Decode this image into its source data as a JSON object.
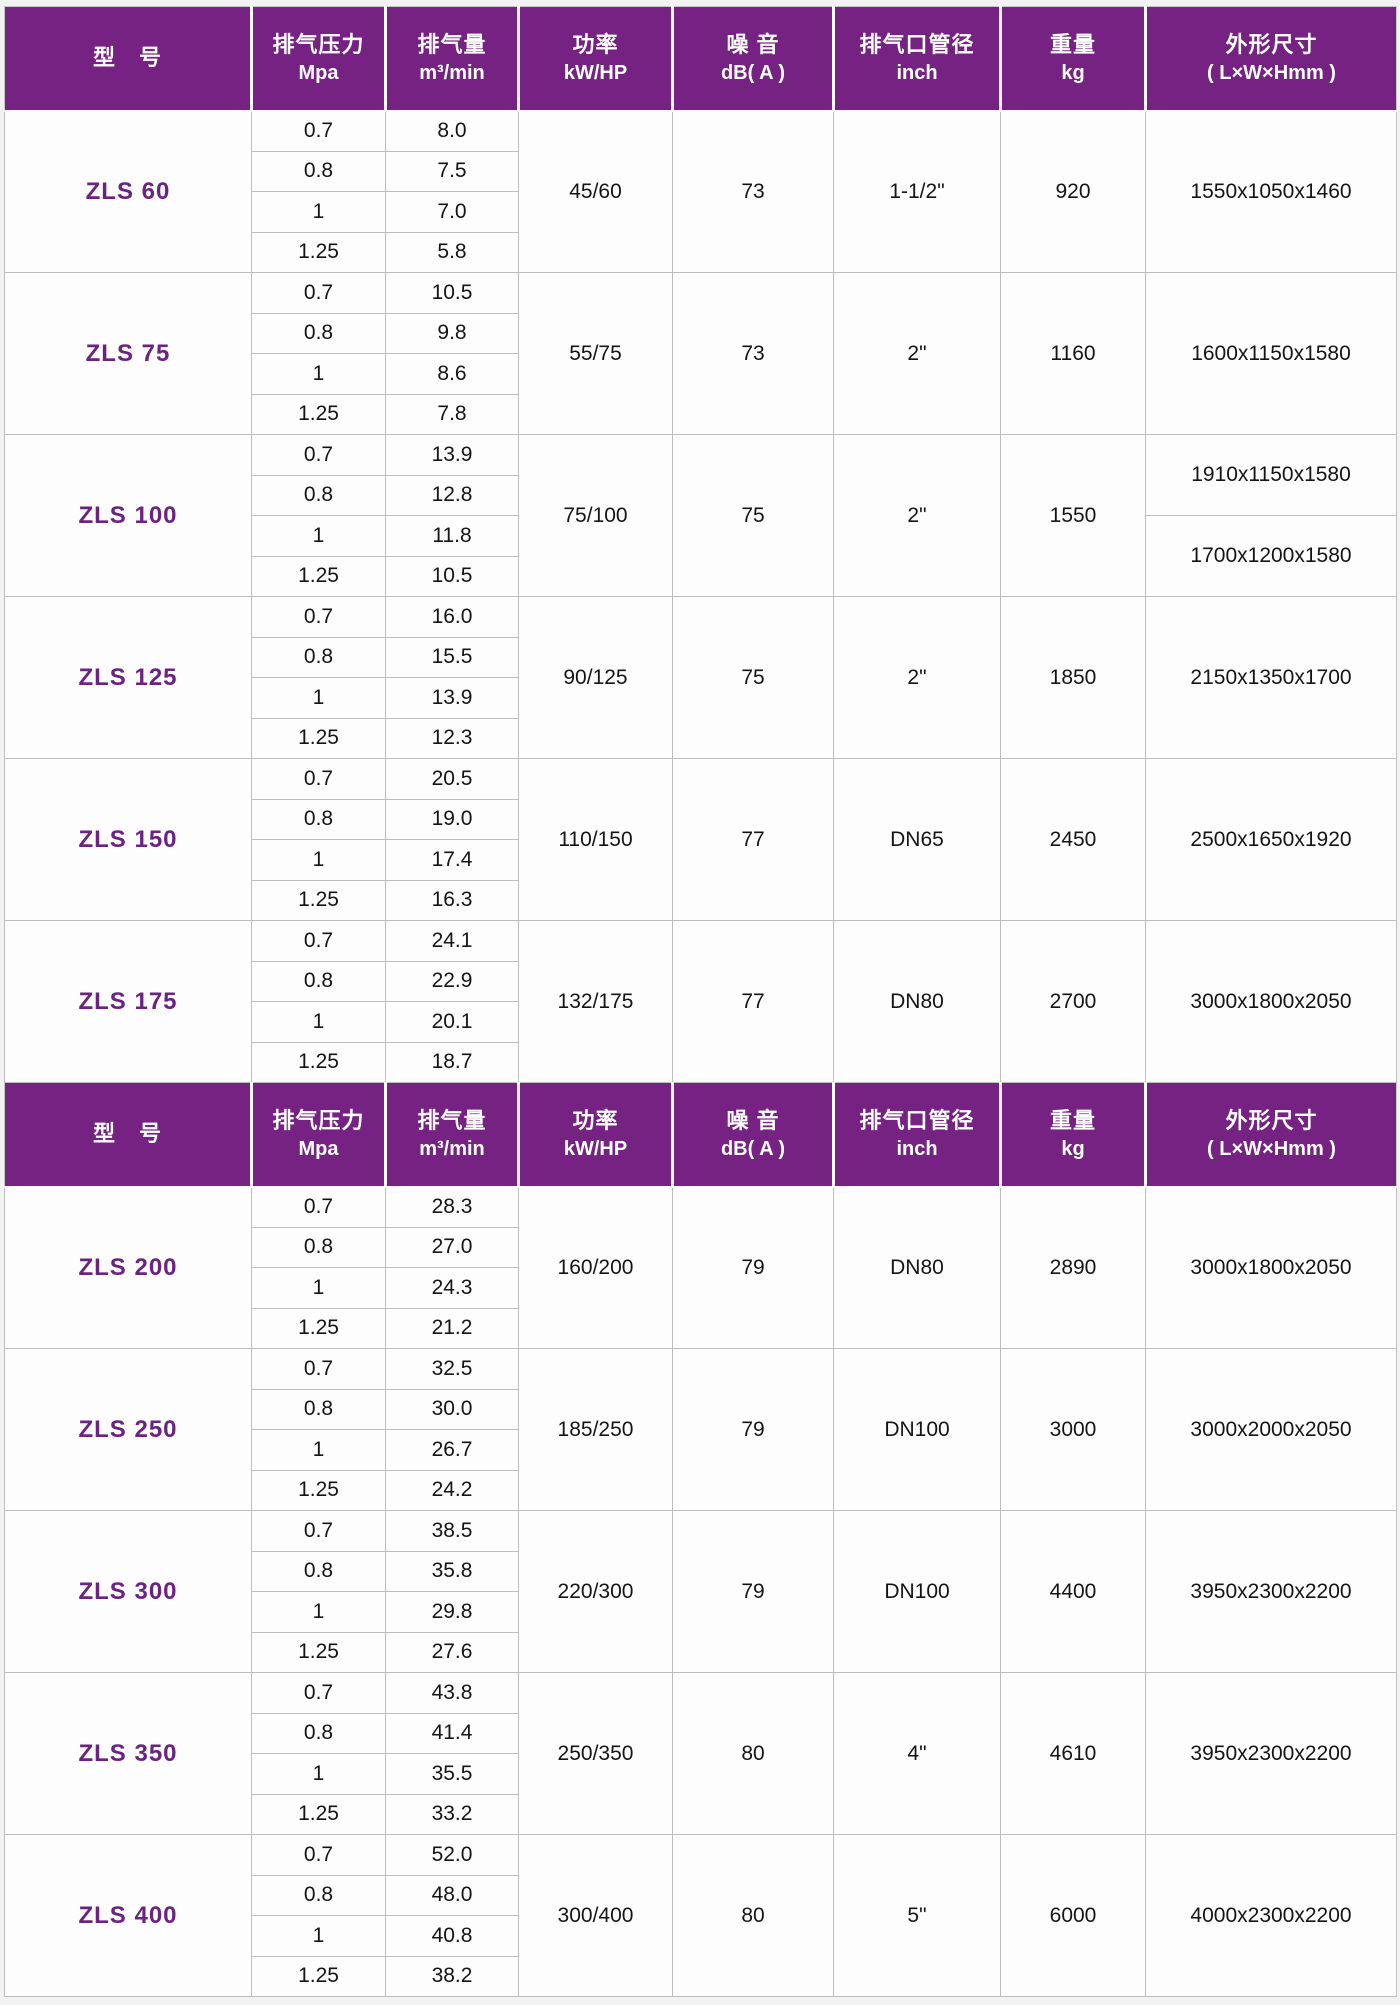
{
  "colors": {
    "header_bg": "#762282",
    "header_text": "#ffffff",
    "model_text": "#6b2382",
    "row_bg": "#fdfdfd",
    "grid_line": "#bdbdbd",
    "page_bg": "#f2f2f2"
  },
  "columns": [
    {
      "id": "model",
      "line1": "型　号",
      "line2": ""
    },
    {
      "id": "pressure",
      "line1": "排气压力",
      "line2": "Mpa"
    },
    {
      "id": "displacement",
      "line1": "排气量",
      "line2": "m³/min"
    },
    {
      "id": "power",
      "line1": "功率",
      "line2": "kW/HP"
    },
    {
      "id": "noise",
      "line1": "噪 音",
      "line2": "dB( A )"
    },
    {
      "id": "port",
      "line1": "排气口管径",
      "line2": "inch"
    },
    {
      "id": "weight",
      "line1": "重量",
      "line2": "kg"
    },
    {
      "id": "dimensions",
      "line1": "外形尺寸",
      "line2": "( L×W×Hmm )"
    }
  ],
  "sections": [
    {
      "models": [
        {
          "name": "ZLS 60",
          "rows": [
            {
              "pressure": "0.7",
              "displacement": "8.0"
            },
            {
              "pressure": "0.8",
              "displacement": "7.5"
            },
            {
              "pressure": "1",
              "displacement": "7.0"
            },
            {
              "pressure": "1.25",
              "displacement": "5.8"
            }
          ],
          "power": "45/60",
          "noise": "73",
          "port": "1-1/2\"",
          "weight": "920",
          "dims": [
            "1550x1050x1460"
          ]
        },
        {
          "name": "ZLS 75",
          "rows": [
            {
              "pressure": "0.7",
              "displacement": "10.5"
            },
            {
              "pressure": "0.8",
              "displacement": "9.8"
            },
            {
              "pressure": "1",
              "displacement": "8.6"
            },
            {
              "pressure": "1.25",
              "displacement": "7.8"
            }
          ],
          "power": "55/75",
          "noise": "73",
          "port": "2\"",
          "weight": "1160",
          "dims": [
            "1600x1150x1580"
          ]
        },
        {
          "name": "ZLS 100",
          "rows": [
            {
              "pressure": "0.7",
              "displacement": "13.9"
            },
            {
              "pressure": "0.8",
              "displacement": "12.8"
            },
            {
              "pressure": "1",
              "displacement": "11.8"
            },
            {
              "pressure": "1.25",
              "displacement": "10.5"
            }
          ],
          "power": "75/100",
          "noise": "75",
          "port": "2\"",
          "weight": "1550",
          "dims": [
            "1910x1150x1580",
            "1700x1200x1580"
          ]
        },
        {
          "name": "ZLS 125",
          "rows": [
            {
              "pressure": "0.7",
              "displacement": "16.0"
            },
            {
              "pressure": "0.8",
              "displacement": "15.5"
            },
            {
              "pressure": "1",
              "displacement": "13.9"
            },
            {
              "pressure": "1.25",
              "displacement": "12.3"
            }
          ],
          "power": "90/125",
          "noise": "75",
          "port": "2\"",
          "weight": "1850",
          "dims": [
            "2150x1350x1700"
          ]
        },
        {
          "name": "ZLS 150",
          "rows": [
            {
              "pressure": "0.7",
              "displacement": "20.5"
            },
            {
              "pressure": "0.8",
              "displacement": "19.0"
            },
            {
              "pressure": "1",
              "displacement": "17.4"
            },
            {
              "pressure": "1.25",
              "displacement": "16.3"
            }
          ],
          "power": "110/150",
          "noise": "77",
          "port": "DN65",
          "weight": "2450",
          "dims": [
            "2500x1650x1920"
          ]
        },
        {
          "name": "ZLS 175",
          "rows": [
            {
              "pressure": "0.7",
              "displacement": "24.1"
            },
            {
              "pressure": "0.8",
              "displacement": "22.9"
            },
            {
              "pressure": "1",
              "displacement": "20.1"
            },
            {
              "pressure": "1.25",
              "displacement": "18.7"
            }
          ],
          "power": "132/175",
          "noise": "77",
          "port": "DN80",
          "weight": "2700",
          "dims": [
            "3000x1800x2050"
          ]
        }
      ]
    },
    {
      "models": [
        {
          "name": "ZLS 200",
          "rows": [
            {
              "pressure": "0.7",
              "displacement": "28.3"
            },
            {
              "pressure": "0.8",
              "displacement": "27.0"
            },
            {
              "pressure": "1",
              "displacement": "24.3"
            },
            {
              "pressure": "1.25",
              "displacement": "21.2"
            }
          ],
          "power": "160/200",
          "noise": "79",
          "port": "DN80",
          "weight": "2890",
          "dims": [
            "3000x1800x2050"
          ]
        },
        {
          "name": "ZLS 250",
          "rows": [
            {
              "pressure": "0.7",
              "displacement": "32.5"
            },
            {
              "pressure": "0.8",
              "displacement": "30.0"
            },
            {
              "pressure": "1",
              "displacement": "26.7"
            },
            {
              "pressure": "1.25",
              "displacement": "24.2"
            }
          ],
          "power": "185/250",
          "noise": "79",
          "port": "DN100",
          "weight": "3000",
          "dims": [
            "3000x2000x2050"
          ]
        },
        {
          "name": "ZLS 300",
          "rows": [
            {
              "pressure": "0.7",
              "displacement": "38.5"
            },
            {
              "pressure": "0.8",
              "displacement": "35.8"
            },
            {
              "pressure": "1",
              "displacement": "29.8"
            },
            {
              "pressure": "1.25",
              "displacement": "27.6"
            }
          ],
          "power": "220/300",
          "noise": "79",
          "port": "DN100",
          "weight": "4400",
          "dims": [
            "3950x2300x2200"
          ]
        },
        {
          "name": "ZLS 350",
          "rows": [
            {
              "pressure": "0.7",
              "displacement": "43.8"
            },
            {
              "pressure": "0.8",
              "displacement": "41.4"
            },
            {
              "pressure": "1",
              "displacement": "35.5"
            },
            {
              "pressure": "1.25",
              "displacement": "33.2"
            }
          ],
          "power": "250/350",
          "noise": "80",
          "port": "4\"",
          "weight": "4610",
          "dims": [
            "3950x2300x2200"
          ]
        },
        {
          "name": "ZLS 400",
          "rows": [
            {
              "pressure": "0.7",
              "displacement": "52.0"
            },
            {
              "pressure": "0.8",
              "displacement": "48.0"
            },
            {
              "pressure": "1",
              "displacement": "40.8"
            },
            {
              "pressure": "1.25",
              "displacement": "38.2"
            }
          ],
          "power": "300/400",
          "noise": "80",
          "port": "5\"",
          "weight": "6000",
          "dims": [
            "4000x2300x2200"
          ]
        }
      ]
    }
  ]
}
